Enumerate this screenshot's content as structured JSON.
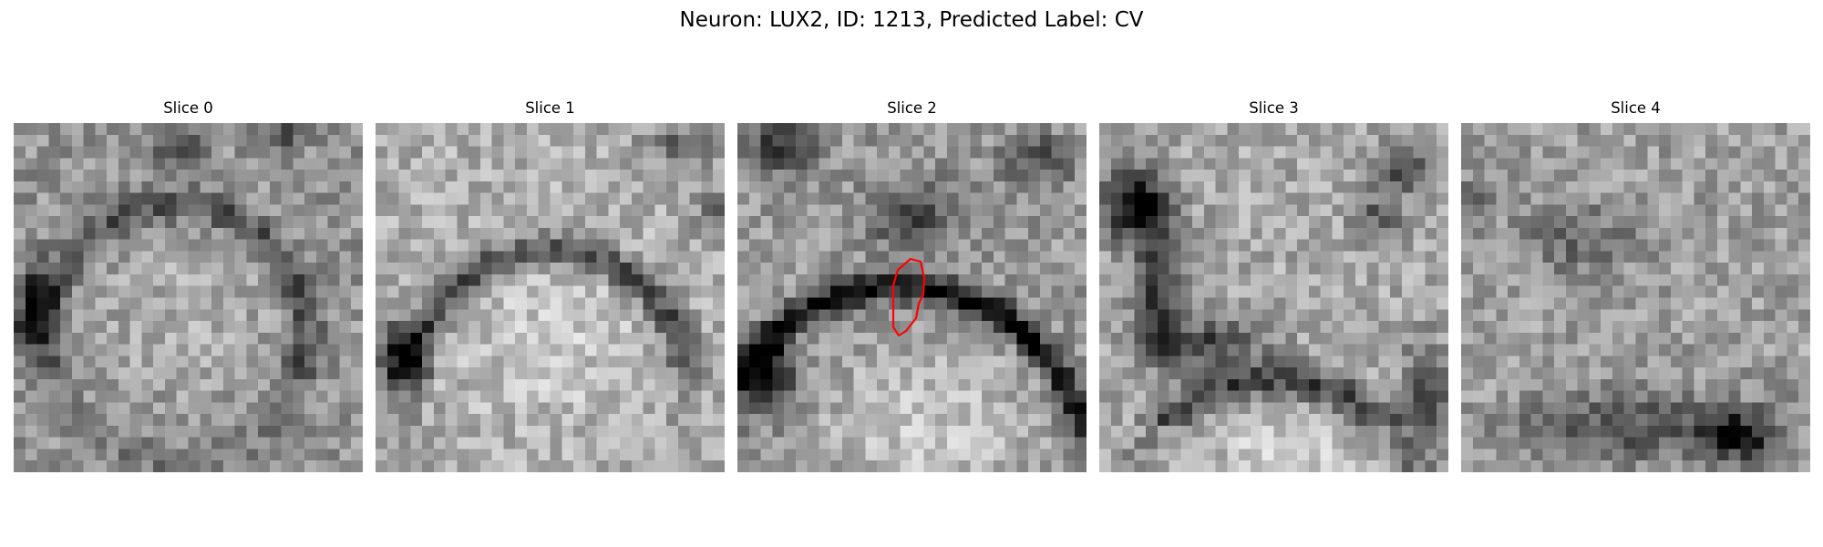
{
  "figure": {
    "title": "Neuron: LUX2, ID: 1213, Predicted Label: CV"
  },
  "colors": {
    "background": "#ffffff",
    "overlay_outline": "#ff0000",
    "colormap": "grayscale"
  },
  "panels": [
    {
      "title": "Slice 0",
      "has_outline": false
    },
    {
      "title": "Slice 1",
      "has_outline": false
    },
    {
      "title": "Slice 2",
      "has_outline": true
    },
    {
      "title": "Slice 3",
      "has_outline": false
    },
    {
      "title": "Slice 4",
      "has_outline": false
    }
  ]
}
